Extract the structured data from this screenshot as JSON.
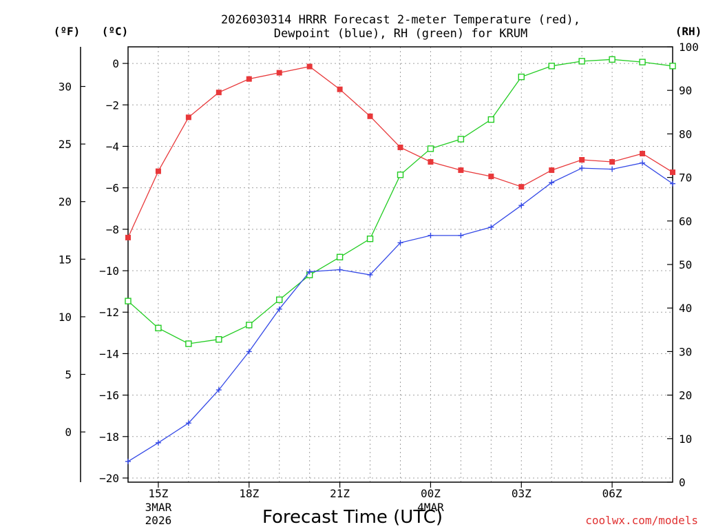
{
  "chart_data": {
    "type": "line",
    "title": [
      "2026030314 HRRR Forecast 2-meter Temperature (red),",
      "Dewpoint (blue), RH (green) for KRUM"
    ],
    "xlabel": "Forecast Time (UTC)",
    "credit": "coolwx.com/models",
    "colors": {
      "temperature": "#e8383a",
      "dewpoint": "#3348e6",
      "rh": "#22cc22"
    },
    "x_hours": [
      14,
      15,
      16,
      17,
      18,
      19,
      20,
      21,
      22,
      23,
      24,
      25,
      26,
      27,
      28,
      29,
      30,
      31,
      32
    ],
    "x_range": [
      14,
      32
    ],
    "x_ticks": [
      {
        "hour": 15,
        "label": "15Z",
        "sub": [
          "3MAR",
          "2026"
        ]
      },
      {
        "hour": 18,
        "label": "18Z",
        "sub": []
      },
      {
        "hour": 21,
        "label": "21Z",
        "sub": []
      },
      {
        "hour": 24,
        "label": "00Z",
        "sub": [
          "4MAR"
        ]
      },
      {
        "hour": 27,
        "label": "03Z",
        "sub": []
      },
      {
        "hour": 30,
        "label": "06Z",
        "sub": []
      }
    ],
    "axes": {
      "celsius": {
        "unit": "(ºC)",
        "range": [
          -20.2,
          0.8
        ],
        "ticks": [
          0,
          -2,
          -4,
          -6,
          -8,
          -10,
          -12,
          -14,
          -16,
          -18,
          -20
        ],
        "tick_labels": [
          "0",
          "−2",
          "−4",
          "−6",
          "−8",
          "−10",
          "−12",
          "−14",
          "−16",
          "−18",
          "−20"
        ]
      },
      "fahrenheit": {
        "unit": "(ºF)",
        "ticks": [
          0,
          5,
          10,
          15,
          20,
          25,
          30
        ],
        "tick_labels": [
          "0",
          "5",
          "10",
          "15",
          "20",
          "25",
          "30"
        ]
      },
      "rh": {
        "unit": "(RH)",
        "range": [
          0,
          100
        ],
        "ticks": [
          0,
          10,
          20,
          30,
          40,
          50,
          60,
          70,
          80,
          90,
          100
        ],
        "tick_labels": [
          "0",
          "10",
          "20",
          "30",
          "40",
          "50",
          "60",
          "70",
          "80",
          "90",
          "100"
        ]
      }
    },
    "series": [
      {
        "name": "2-meter Temperature",
        "units": "C",
        "axis": "celsius",
        "marker": "filled-square",
        "values": [
          -8.4,
          -5.2,
          -2.6,
          -1.4,
          -0.75,
          -0.45,
          -0.15,
          -1.25,
          -2.55,
          -4.05,
          -4.75,
          -5.15,
          -5.45,
          -5.95,
          -5.15,
          -4.65,
          -4.75,
          -4.35,
          -5.25
        ]
      },
      {
        "name": "Dewpoint",
        "units": "C",
        "axis": "celsius",
        "marker": "plus",
        "values": [
          -19.2,
          -18.3,
          -17.35,
          -15.75,
          -13.9,
          -11.85,
          -10.05,
          -9.95,
          -10.2,
          -8.65,
          -8.3,
          -8.3,
          -7.9,
          -6.85,
          -5.75,
          -5.05,
          -5.1,
          -4.8,
          -5.8
        ]
      },
      {
        "name": "Relative Humidity",
        "units": "%",
        "axis": "rh",
        "marker": "open-square",
        "values": [
          41.6,
          35.4,
          31.8,
          32.8,
          36.1,
          41.9,
          47.6,
          51.7,
          55.9,
          70.6,
          76.6,
          78.8,
          83.3,
          93.1,
          95.6,
          96.7,
          97.1,
          96.5,
          95.6
        ]
      }
    ]
  }
}
